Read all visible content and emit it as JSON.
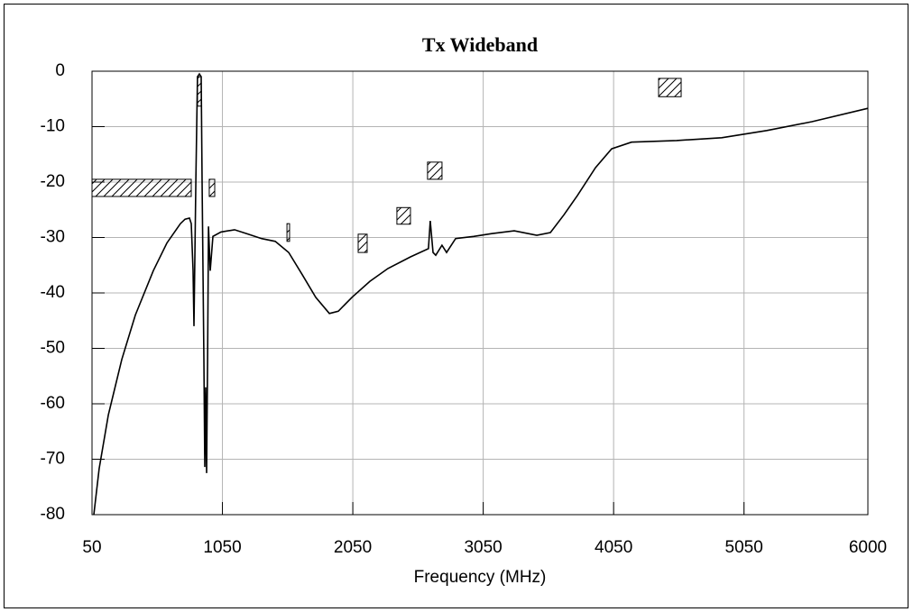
{
  "chart_data": {
    "type": "line",
    "title": "Tx Wideband",
    "x_label": "Frequency (MHz)",
    "color": "#000000",
    "grid": true,
    "xlim": [
      50,
      6000
    ],
    "xticks": [
      50,
      1050,
      2050,
      3050,
      4050,
      5050,
      6000
    ],
    "ylim": [
      -80,
      0
    ],
    "yticks": [
      -80,
      -70,
      -60,
      -50,
      -40,
      -30,
      -20,
      -10,
      0
    ],
    "x": [
      64,
      105,
      175,
      278,
      382,
      520,
      624,
      728,
      763,
      797,
      811,
      825,
      832,
      846,
      859,
      873,
      887,
      894,
      908,
      915,
      922,
      929,
      936,
      943,
      956,
      977,
      1039,
      1143,
      1247,
      1351,
      1455,
      1558,
      1662,
      1766,
      1870,
      1939,
      2043,
      2181,
      2319,
      2492,
      2630,
      2644,
      2665,
      2686,
      2734,
      2769,
      2838,
      2977,
      3115,
      3288,
      3461,
      3565,
      3669,
      3773,
      3911,
      4035,
      4187,
      4533,
      4879,
      5225,
      5571,
      6000
    ],
    "values": [
      -80,
      -71.7,
      -62,
      -52,
      -44,
      -36,
      -31,
      -27.5,
      -26.7,
      -26.5,
      -27.5,
      -36,
      -46,
      -19.7,
      -1,
      -0.5,
      -1,
      -19.7,
      -52,
      -71.4,
      -57,
      -72.5,
      -52,
      -28,
      -36,
      -29.8,
      -29,
      -28.6,
      -29.4,
      -30.2,
      -30.7,
      -32.7,
      -36.7,
      -40.8,
      -43.7,
      -43.3,
      -40.8,
      -37.9,
      -35.6,
      -33.5,
      -32,
      -27,
      -32.7,
      -33.2,
      -31.4,
      -32.7,
      -30.2,
      -29.8,
      -29.3,
      -28.8,
      -29.6,
      -29.1,
      -25.9,
      -22.4,
      -17.4,
      -14,
      -12.8,
      -12.5,
      -12,
      -10.7,
      -9.1,
      -6.7
    ],
    "masks": [
      {
        "x": [
          50,
          811
        ],
        "y": [
          -19.5,
          -22.6
        ]
      },
      {
        "x": [
          859,
          887
        ],
        "y": [
          -1,
          -6.3
        ]
      },
      {
        "x": [
          949,
          991
        ],
        "y": [
          -19.5,
          -22.6
        ]
      },
      {
        "x": [
          1545,
          1565
        ],
        "y": [
          -27.5,
          -30.7
        ]
      },
      {
        "x": [
          2091,
          2160
        ],
        "y": [
          -29.4,
          -32.7
        ]
      },
      {
        "x": [
          2388,
          2492
        ],
        "y": [
          -24.6,
          -27.6
        ]
      },
      {
        "x": [
          2623,
          2734
        ],
        "y": [
          -16.4,
          -19.5
        ]
      },
      {
        "x": [
          4395,
          4568
        ],
        "y": [
          -1.3,
          -4.6
        ]
      }
    ]
  }
}
